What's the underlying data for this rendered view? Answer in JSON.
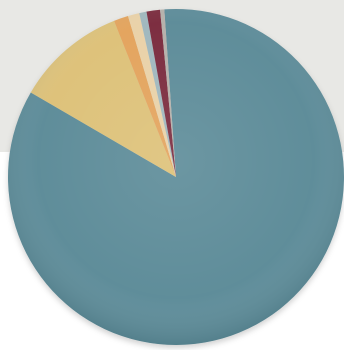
{
  "chart_data": {
    "type": "pie",
    "title": "",
    "start_angle_deg": -4,
    "slices": [
      {
        "label": "",
        "value": 84.5,
        "color": "#5c8b98"
      },
      {
        "label": "",
        "value": 10.6,
        "color": "#ddc178"
      },
      {
        "label": "",
        "value": 1.4,
        "color": "#e3a35c"
      },
      {
        "label": "",
        "value": 1.1,
        "color": "#e9d1a7"
      },
      {
        "label": "",
        "value": 0.7,
        "color": "#9fb7bd"
      },
      {
        "label": "",
        "value": 1.3,
        "color": "#7a2a3e"
      },
      {
        "label": "",
        "value": 0.4,
        "color": "#b5b0aa"
      }
    ],
    "legend": "none",
    "data_labels": false
  }
}
